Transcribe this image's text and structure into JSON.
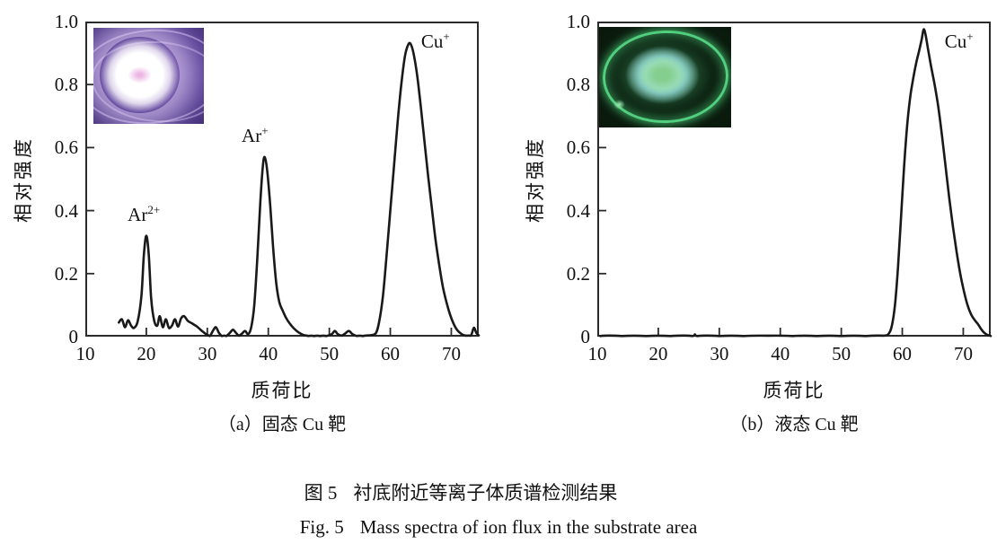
{
  "figure": {
    "caption_cn_label": "图 5",
    "caption_cn_text": "衬底附近等离子体质谱检测结果",
    "caption_en_label": "Fig. 5",
    "caption_en_text": "Mass spectra of ion flux in the substrate area"
  },
  "chart_data": [
    {
      "type": "line",
      "id": "a",
      "subcaption": "（a）固态 Cu 靶",
      "xlabel": "质荷比",
      "ylabel": "相对强度",
      "x_range": [
        10,
        74.5
      ],
      "y_range": [
        0,
        1
      ],
      "x_ticks": [
        {
          "v": 10,
          "label": "10"
        },
        {
          "v": 20,
          "label": "20"
        },
        {
          "v": 30,
          "label": "30"
        },
        {
          "v": 40,
          "label": "40"
        },
        {
          "v": 50,
          "label": "50"
        },
        {
          "v": 60,
          "label": "60"
        },
        {
          "v": 70,
          "label": "70"
        }
      ],
      "y_ticks": [
        {
          "v": 0,
          "label": "0"
        },
        {
          "v": 0.2,
          "label": "0.2"
        },
        {
          "v": 0.4,
          "label": "0.4"
        },
        {
          "v": 0.6,
          "label": "0.6"
        },
        {
          "v": 0.8,
          "label": "0.8"
        },
        {
          "v": 1,
          "label": "1.0"
        }
      ],
      "grid": false,
      "line_color": "#191919",
      "axis_color": "#2b2b2b",
      "peaks": [
        {
          "ion": "Ar2+",
          "mz": 20,
          "intensity": 0.32
        },
        {
          "ion": "Ar+",
          "mz": 39.4,
          "intensity": 0.57
        },
        {
          "ion": "Cu+",
          "mz": 63,
          "intensity": 0.93
        }
      ],
      "annotations": [
        {
          "base": "Ar",
          "sup": "2+",
          "x": 19.6,
          "y": 0.35
        },
        {
          "base": "Ar",
          "sup": "+",
          "x": 37.8,
          "y": 0.6
        },
        {
          "base": "Cu",
          "sup": "+",
          "x": 67.4,
          "y": 0.9
        }
      ],
      "series": [
        [
          15.5,
          0.045
        ],
        [
          16,
          0.055
        ],
        [
          16.5,
          0.03
        ],
        [
          17,
          0.052
        ],
        [
          17.5,
          0.035
        ],
        [
          18,
          0.028
        ],
        [
          18.6,
          0.05
        ],
        [
          19.2,
          0.13
        ],
        [
          19.6,
          0.26
        ],
        [
          20,
          0.32
        ],
        [
          20.4,
          0.26
        ],
        [
          20.8,
          0.12
        ],
        [
          21.3,
          0.05
        ],
        [
          21.8,
          0.035
        ],
        [
          22.2,
          0.065
        ],
        [
          22.7,
          0.03
        ],
        [
          23.2,
          0.055
        ],
        [
          23.7,
          0.028
        ],
        [
          24.2,
          0.035
        ],
        [
          24.7,
          0.055
        ],
        [
          25.2,
          0.032
        ],
        [
          25.7,
          0.058
        ],
        [
          26.2,
          0.065
        ],
        [
          26.8,
          0.05
        ],
        [
          27.5,
          0.042
        ],
        [
          28.3,
          0.032
        ],
        [
          29,
          0.02
        ],
        [
          29.8,
          0.008
        ],
        [
          30.4,
          0.002
        ],
        [
          30.9,
          0.018
        ],
        [
          31.4,
          0.03
        ],
        [
          31.9,
          0.012
        ],
        [
          32.4,
          0.002
        ],
        [
          33.1,
          0.002
        ],
        [
          33.7,
          0.012
        ],
        [
          34.2,
          0.022
        ],
        [
          34.7,
          0.012
        ],
        [
          35.2,
          0.003
        ],
        [
          35.7,
          0.01
        ],
        [
          36.2,
          0.018
        ],
        [
          36.7,
          0.008
        ],
        [
          37.2,
          0.03
        ],
        [
          37.7,
          0.1
        ],
        [
          38.2,
          0.25
        ],
        [
          38.7,
          0.43
        ],
        [
          39.1,
          0.54
        ],
        [
          39.4,
          0.57
        ],
        [
          39.8,
          0.53
        ],
        [
          40.3,
          0.42
        ],
        [
          40.8,
          0.28
        ],
        [
          41.3,
          0.17
        ],
        [
          41.8,
          0.11
        ],
        [
          42.3,
          0.085
        ],
        [
          42.9,
          0.06
        ],
        [
          43.5,
          0.042
        ],
        [
          44.2,
          0.026
        ],
        [
          45,
          0.013
        ],
        [
          45.8,
          0.005
        ],
        [
          46.6,
          0.002
        ],
        [
          47.5,
          0.002
        ],
        [
          48.5,
          0.002
        ],
        [
          49.5,
          0.002
        ],
        [
          50.4,
          0.008
        ],
        [
          50.9,
          0.018
        ],
        [
          51.4,
          0.008
        ],
        [
          52,
          0.003
        ],
        [
          52.6,
          0.01
        ],
        [
          53.2,
          0.018
        ],
        [
          53.8,
          0.008
        ],
        [
          54.5,
          0.002
        ],
        [
          55.5,
          0.002
        ],
        [
          56.5,
          0.004
        ],
        [
          57.6,
          0.01
        ],
        [
          58.2,
          0.05
        ],
        [
          58.8,
          0.13
        ],
        [
          59.4,
          0.26
        ],
        [
          60,
          0.4
        ],
        [
          60.6,
          0.54
        ],
        [
          61.2,
          0.68
        ],
        [
          61.8,
          0.8
        ],
        [
          62.4,
          0.89
        ],
        [
          62.9,
          0.925
        ],
        [
          63.3,
          0.93
        ],
        [
          63.8,
          0.9
        ],
        [
          64.4,
          0.83
        ],
        [
          65,
          0.73
        ],
        [
          65.6,
          0.62
        ],
        [
          66.2,
          0.51
        ],
        [
          66.8,
          0.41
        ],
        [
          67.4,
          0.31
        ],
        [
          68,
          0.23
        ],
        [
          68.6,
          0.16
        ],
        [
          69.2,
          0.11
        ],
        [
          69.8,
          0.07
        ],
        [
          70.4,
          0.04
        ],
        [
          71,
          0.02
        ],
        [
          71.7,
          0.008
        ],
        [
          72.4,
          0.003
        ],
        [
          73.2,
          0.003
        ],
        [
          73.7,
          0.028
        ],
        [
          74.1,
          0.012
        ],
        [
          74.5,
          0.004
        ]
      ]
    },
    {
      "type": "line",
      "id": "b",
      "subcaption": "（b）液态 Cu 靶",
      "xlabel": "质荷比",
      "ylabel": "相对强度",
      "x_range": [
        10,
        74.5
      ],
      "y_range": [
        0,
        1
      ],
      "x_ticks": [
        {
          "v": 10,
          "label": "10"
        },
        {
          "v": 20,
          "label": "20"
        },
        {
          "v": 30,
          "label": "30"
        },
        {
          "v": 40,
          "label": "40"
        },
        {
          "v": 50,
          "label": "50"
        },
        {
          "v": 60,
          "label": "60"
        },
        {
          "v": 70,
          "label": "70"
        }
      ],
      "y_ticks": [
        {
          "v": 0,
          "label": "0"
        },
        {
          "v": 0.2,
          "label": "0.2"
        },
        {
          "v": 0.4,
          "label": "0.4"
        },
        {
          "v": 0.6,
          "label": "0.6"
        },
        {
          "v": 0.8,
          "label": "0.8"
        },
        {
          "v": 1,
          "label": "1.0"
        }
      ],
      "grid": false,
      "line_color": "#191919",
      "axis_color": "#2b2b2b",
      "peaks": [
        {
          "ion": "Cu+",
          "mz": 63.5,
          "intensity": 0.97
        }
      ],
      "annotations": [
        {
          "base": "Cu",
          "sup": "+",
          "x": 69.3,
          "y": 0.9
        }
      ],
      "series": [
        [
          10.5,
          0.002
        ],
        [
          14,
          0.002
        ],
        [
          18,
          0.002
        ],
        [
          22,
          0.002
        ],
        [
          25.6,
          0.002
        ],
        [
          26,
          0.007
        ],
        [
          26.4,
          0.002
        ],
        [
          30,
          0.002
        ],
        [
          34,
          0.002
        ],
        [
          38,
          0.003
        ],
        [
          42,
          0.002
        ],
        [
          46,
          0.002
        ],
        [
          50,
          0.002
        ],
        [
          54,
          0.002
        ],
        [
          57,
          0.003
        ],
        [
          57.8,
          0.01
        ],
        [
          58.3,
          0.035
        ],
        [
          58.8,
          0.1
        ],
        [
          59.3,
          0.22
        ],
        [
          59.8,
          0.38
        ],
        [
          60.3,
          0.54
        ],
        [
          60.8,
          0.67
        ],
        [
          61.3,
          0.76
        ],
        [
          61.8,
          0.82
        ],
        [
          62.3,
          0.87
        ],
        [
          62.8,
          0.91
        ],
        [
          63.2,
          0.945
        ],
        [
          63.5,
          0.975
        ],
        [
          63.8,
          0.96
        ],
        [
          64.2,
          0.915
        ],
        [
          64.7,
          0.86
        ],
        [
          65.3,
          0.8
        ],
        [
          65.9,
          0.73
        ],
        [
          66.5,
          0.64
        ],
        [
          67.1,
          0.54
        ],
        [
          67.7,
          0.44
        ],
        [
          68.3,
          0.35
        ],
        [
          68.9,
          0.27
        ],
        [
          69.5,
          0.2
        ],
        [
          70.1,
          0.145
        ],
        [
          70.7,
          0.1
        ],
        [
          71.3,
          0.07
        ],
        [
          71.9,
          0.052
        ],
        [
          72.4,
          0.04
        ],
        [
          72.9,
          0.025
        ],
        [
          73.4,
          0.013
        ],
        [
          74,
          0.005
        ],
        [
          74.5,
          0.002
        ]
      ]
    }
  ],
  "insets": [
    {
      "for_chart": "a",
      "kind": "plasma-discharge-photo",
      "main_color": "#6a4e9e",
      "glow_color": "#ffffff",
      "core_color": "#ecb6e4"
    },
    {
      "for_chart": "b",
      "kind": "plasma-discharge-photo",
      "main_color": "#4ade7f",
      "glow_color": "#acecd8",
      "core_color": "#84cf90"
    }
  ]
}
